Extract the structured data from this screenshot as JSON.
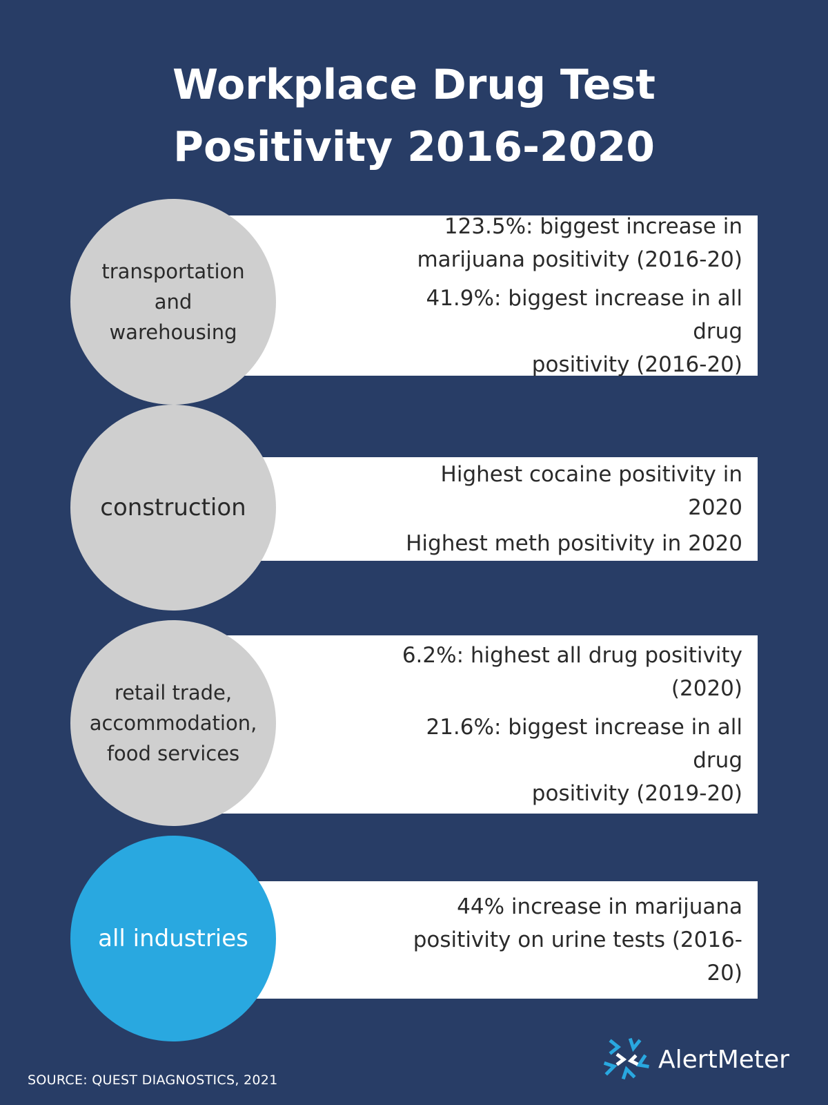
{
  "title": {
    "line1": "Workplace Drug Test",
    "line2": "Positivity 2016-2020"
  },
  "rows": [
    {
      "label": [
        "transportation",
        "and",
        "warehousing"
      ],
      "stats": [
        [
          "123.5%: biggest increase in",
          "marijuana positivity (2016-20)"
        ],
        [
          "41.9%: biggest increase in all drug",
          "positivity (2016-20)"
        ]
      ]
    },
    {
      "label": [
        "construction"
      ],
      "stats": [
        [
          "Highest cocaine positivity in 2020"
        ],
        [
          "Highest meth positivity in 2020"
        ]
      ]
    },
    {
      "label": [
        "retail trade,",
        "accommodation,",
        "food services"
      ],
      "stats": [
        [
          "6.2%: highest all drug positivity",
          "(2020)"
        ],
        [
          "21.6%: biggest increase in all drug",
          "positivity (2019-20)"
        ]
      ]
    },
    {
      "label": [
        "all industries"
      ],
      "stats": [
        [
          "44% increase in marijuana",
          "positivity on urine tests (2016-20)"
        ]
      ]
    }
  ],
  "source": "SOURCE: QUEST DIAGNOSTICS, 2021",
  "brand": {
    "name": "AlertMeter",
    "icon": "alertmeter-logo-icon"
  },
  "colors": {
    "background": "#283d66",
    "circle_gray": "#cfcfcf",
    "circle_blue": "#29a8e0",
    "box": "#ffffff"
  }
}
